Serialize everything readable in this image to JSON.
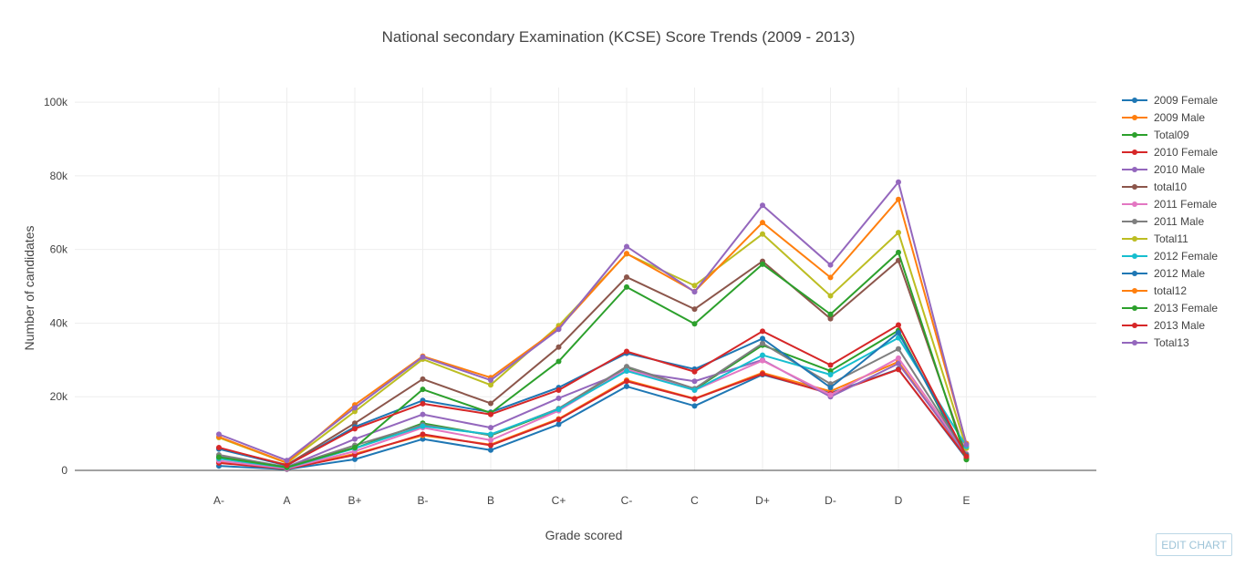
{
  "edit_button_label": "EDIT CHART",
  "chart_data": {
    "type": "line",
    "title": "National secondary Examination (KCSE) Score Trends (2009 - 2013)",
    "xlabel": "Grade scored",
    "ylabel": "Number of candidates",
    "categories": [
      "A-",
      "A",
      "B+",
      "B-",
      "B",
      "C+",
      "C-",
      "C",
      "D+",
      "D-",
      "D",
      "E"
    ],
    "ylim": [
      0,
      100000
    ],
    "yticks": [
      0,
      20000,
      40000,
      60000,
      80000,
      100000
    ],
    "ytick_labels": [
      "0",
      "20k",
      "40k",
      "60k",
      "80k",
      "100k"
    ],
    "grid": true,
    "legend_position": "right",
    "series": [
      {
        "name": "2009 Female",
        "color": "#1f77b4",
        "values": [
          1200,
          300,
          3000,
          8500,
          5500,
          12500,
          22800,
          17500,
          26000,
          21000,
          27500,
          3200
        ]
      },
      {
        "name": "2009 Male",
        "color": "#ff7f0e",
        "values": [
          2200,
          500,
          4500,
          9500,
          7000,
          14000,
          24500,
          19500,
          26500,
          21500,
          29500,
          3800
        ]
      },
      {
        "name": "Total09",
        "color": "#2ca02c",
        "values": [
          3500,
          900,
          6000,
          12800,
          9500,
          16500,
          28000,
          22000,
          34000,
          27000,
          38000,
          3000
        ]
      },
      {
        "name": "2010 Female",
        "color": "#d62728",
        "values": [
          2000,
          400,
          4200,
          9800,
          6800,
          13800,
          24200,
          19400,
          26200,
          20800,
          27400,
          3500
        ]
      },
      {
        "name": "2010 Male",
        "color": "#9467bd",
        "values": [
          3800,
          900,
          8500,
          15200,
          11600,
          19600,
          27000,
          24200,
          30000,
          20000,
          29000,
          4200
        ]
      },
      {
        "name": "total10",
        "color": "#8c564b",
        "values": [
          6000,
          1500,
          12800,
          24800,
          18200,
          33500,
          52500,
          43800,
          56800,
          41200,
          57000,
          4000
        ]
      },
      {
        "name": "2011 Female",
        "color": "#e377c2",
        "values": [
          2600,
          500,
          5200,
          11600,
          8200,
          16200,
          27500,
          21800,
          29800,
          20500,
          30500,
          4500
        ]
      },
      {
        "name": "2011 Male",
        "color": "#7f7f7f",
        "values": [
          4200,
          900,
          6800,
          12400,
          9600,
          16800,
          28200,
          22200,
          34500,
          23500,
          33000,
          4300
        ]
      },
      {
        "name": "Total11",
        "color": "#bcbd22",
        "values": [
          8900,
          2000,
          16000,
          30200,
          23200,
          39300,
          58800,
          50200,
          64200,
          47400,
          64600,
          6000
        ]
      },
      {
        "name": "2012 Female",
        "color": "#17becf",
        "values": [
          3200,
          700,
          6000,
          12000,
          9800,
          16600,
          27000,
          21800,
          31300,
          26000,
          36000,
          6500
        ]
      },
      {
        "name": "2012 Male",
        "color": "#1f77b4",
        "values": [
          5800,
          1300,
          11800,
          19000,
          15800,
          22500,
          31800,
          27500,
          35800,
          22500,
          37400,
          4000
        ]
      },
      {
        "name": "total12",
        "color": "#ff7f0e",
        "values": [
          9100,
          2100,
          17800,
          31000,
          25200,
          38600,
          58900,
          48600,
          67300,
          52400,
          73600,
          7300
        ]
      },
      {
        "name": "2013 Female",
        "color": "#2ca02c",
        "values": [
          3600,
          800,
          6200,
          22000,
          15600,
          29600,
          49800,
          39800,
          56000,
          42400,
          59200,
          2900
        ]
      },
      {
        "name": "2013 Male",
        "color": "#d62728",
        "values": [
          6200,
          1400,
          11300,
          18100,
          15200,
          21800,
          32300,
          26800,
          37800,
          28600,
          39500,
          3800
        ]
      },
      {
        "name": "Total13",
        "color": "#9467bd",
        "values": [
          9800,
          2700,
          17000,
          30800,
          24500,
          38300,
          60800,
          48500,
          72000,
          55800,
          78300,
          7000
        ]
      }
    ]
  }
}
